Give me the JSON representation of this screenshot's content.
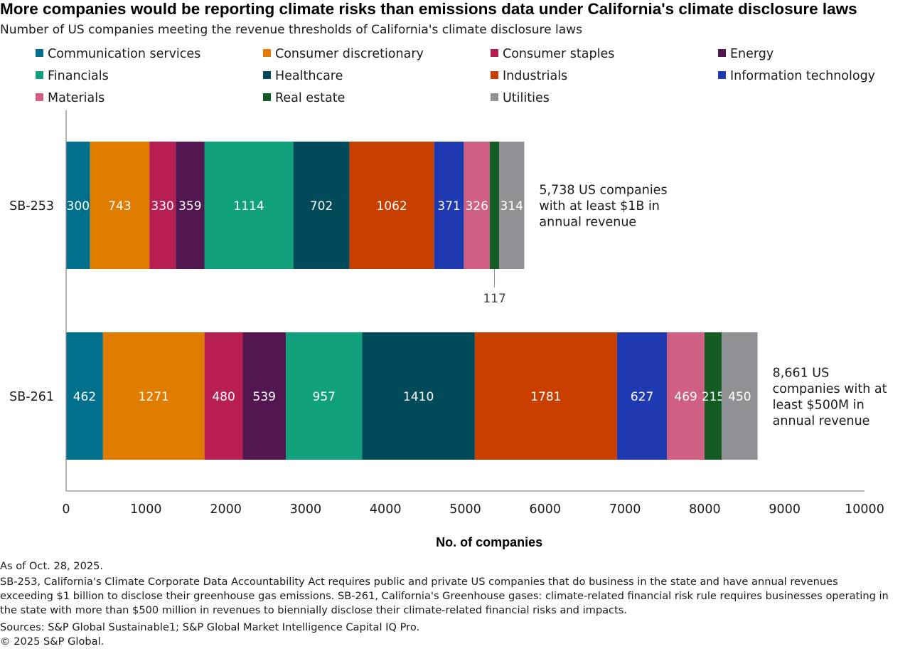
{
  "chart_data": {
    "type": "bar",
    "orientation": "horizontal",
    "stacked": true,
    "title": "More companies would be reporting climate risks than emissions data under California's climate disclosure laws",
    "subtitle": "Number of US companies meeting the revenue thresholds of California's climate disclosure laws",
    "categories": [
      "SB-253",
      "SB-261"
    ],
    "series": [
      {
        "name": "Communication services",
        "color": "#00708d",
        "values": [
          300,
          462
        ]
      },
      {
        "name": "Consumer discretionary",
        "color": "#e07c00",
        "values": [
          743,
          1271
        ]
      },
      {
        "name": "Consumer staples",
        "color": "#b71f52",
        "values": [
          330,
          480
        ]
      },
      {
        "name": "Energy",
        "color": "#521750",
        "values": [
          359,
          539
        ]
      },
      {
        "name": "Financials",
        "color": "#10a07b",
        "values": [
          1114,
          957
        ]
      },
      {
        "name": "Healthcare",
        "color": "#004a5a",
        "values": [
          702,
          1410
        ]
      },
      {
        "name": "Industrials",
        "color": "#c83f00",
        "values": [
          1062,
          1781
        ]
      },
      {
        "name": "Information technology",
        "color": "#1f3ab0",
        "values": [
          371,
          627
        ]
      },
      {
        "name": "Materials",
        "color": "#d05f84",
        "values": [
          326,
          469
        ]
      },
      {
        "name": "Real estate",
        "color": "#145c23",
        "values": [
          117,
          215
        ]
      },
      {
        "name": "Utilities",
        "color": "#909194",
        "values": [
          314,
          450
        ]
      }
    ],
    "bar_annotations": [
      "5,738 US companies with at least $1B in annual revenue",
      "8,661 US companies with at least $500M in annual revenue"
    ],
    "xlabel": "No. of companies",
    "ylabel": "",
    "xlim": [
      0,
      10000
    ],
    "xticks": [
      0,
      1000,
      2000,
      3000,
      4000,
      5000,
      6000,
      7000,
      8000,
      9000,
      10000
    ],
    "grid": false,
    "legend_position": "top"
  },
  "footer": {
    "as_of": "As of Oct. 28, 2025.",
    "note_lines": [
      "SB-253, California's Climate Corporate Data Accountability Act requires public and private US companies that do business in the state and have annual revenues",
      "exceeding $1 billion to disclose their greenhouse gas emissions. SB-261, California's Greenhouse gases: climate-related financial risk rule requires businesses operating in",
      "the state with more than $500 million in revenues to biennially disclose their climate-related financial risks and impacts."
    ],
    "sources": "Sources: S&P Global Sustainable1; S&P Global Market Intelligence Capital IQ Pro.",
    "copyright": "© 2025 S&P Global."
  }
}
